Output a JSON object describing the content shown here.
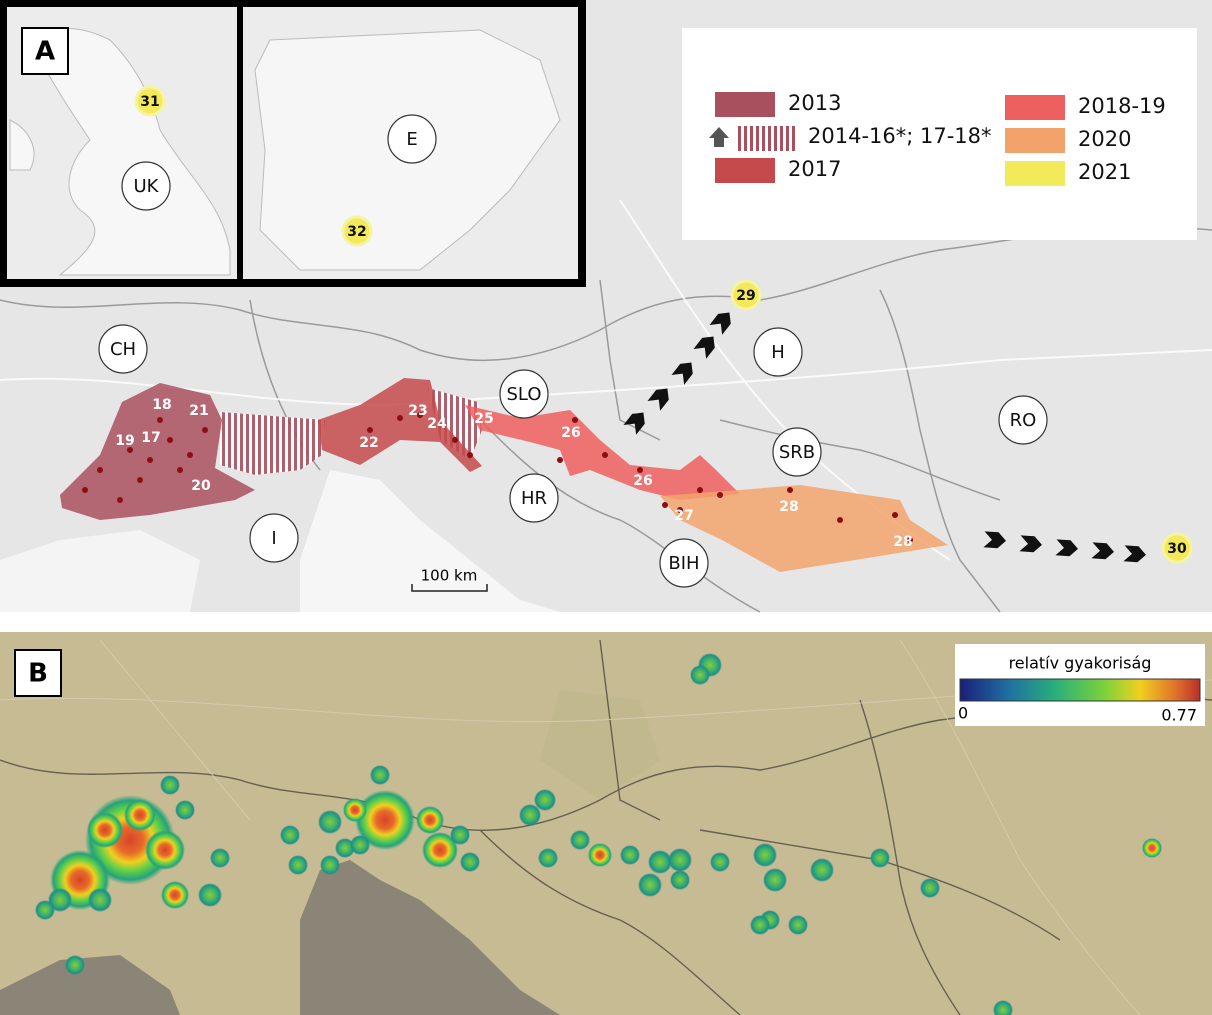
{
  "panel_a": {
    "label": "A",
    "legend": [
      {
        "label": "2013",
        "color": "#a8505e"
      },
      {
        "label": "2014-16*; 17-18*",
        "color": "#a8505e",
        "style": "hatched"
      },
      {
        "label": "2017",
        "color": "#c44a4c"
      },
      {
        "label": "2018-19",
        "color": "#ee5f5f"
      },
      {
        "label": "2020",
        "color": "#f2a36c"
      },
      {
        "label": "2021",
        "color": "#f2ea5a"
      }
    ],
    "countries": [
      "CH",
      "I",
      "SLO",
      "HR",
      "BIH",
      "SRB",
      "H",
      "RO",
      "UK",
      "E"
    ],
    "sites": [
      "18",
      "21",
      "19",
      "17",
      "20",
      "22",
      "23",
      "24",
      "25",
      "26",
      "26",
      "27",
      "28",
      "28",
      "29",
      "30",
      "31",
      "32"
    ],
    "scale_bar": "100 km"
  },
  "panel_b": {
    "label": "B",
    "colorbar": {
      "title": "relatív gyakoriság",
      "min": "0",
      "max": "0.77"
    }
  }
}
